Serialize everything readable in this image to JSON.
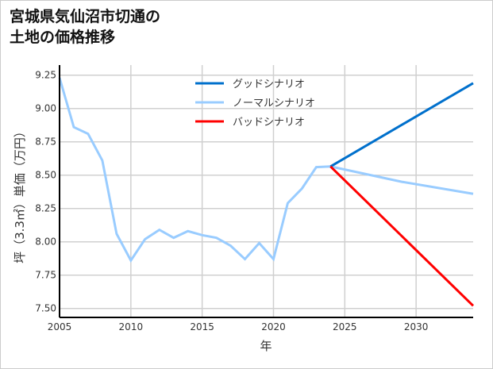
{
  "chart_data": {
    "type": "line",
    "title_lines": [
      "宮城県気仙沼市切通の",
      "土地の価格推移"
    ],
    "xlabel": "年",
    "ylabel": "坪（3.3㎡）単価（万円）",
    "xlim": [
      2005,
      2034
    ],
    "ylim": [
      7.44,
      9.28
    ],
    "xticks": [
      2005,
      2010,
      2015,
      2020,
      2025,
      2030
    ],
    "xtick_labels": [
      "2005",
      "2010",
      "2015",
      "2020",
      "2025",
      "2030"
    ],
    "yticks": [
      7.5,
      7.75,
      8.0,
      8.25,
      8.5,
      8.75,
      9.0,
      9.25
    ],
    "ytick_labels": [
      "7.50",
      "7.75",
      "8.00",
      "8.25",
      "8.50",
      "8.75",
      "9.00",
      "9.25"
    ],
    "grid": true,
    "legend_position": "top-center",
    "series": [
      {
        "name": "グッドシナリオ",
        "color": "#0070cc",
        "x": [
          2024,
          2034
        ],
        "y": [
          8.565,
          9.19
        ]
      },
      {
        "name": "ノーマルシナリオ",
        "color": "#99ccff",
        "x": [
          2005,
          2006,
          2007,
          2008,
          2009,
          2010,
          2011,
          2012,
          2013,
          2014,
          2015,
          2016,
          2017,
          2018,
          2019,
          2020,
          2021,
          2022,
          2023,
          2024,
          2029,
          2034
        ],
        "y": [
          9.23,
          8.86,
          8.81,
          8.61,
          8.06,
          7.86,
          8.02,
          8.09,
          8.03,
          8.08,
          8.05,
          8.03,
          7.97,
          7.87,
          7.99,
          7.87,
          8.29,
          8.4,
          8.56,
          8.565,
          8.45,
          8.36
        ]
      },
      {
        "name": "バッドシナリオ",
        "color": "#ff0000",
        "x": [
          2024,
          2034
        ],
        "y": [
          8.565,
          7.52
        ]
      }
    ]
  }
}
